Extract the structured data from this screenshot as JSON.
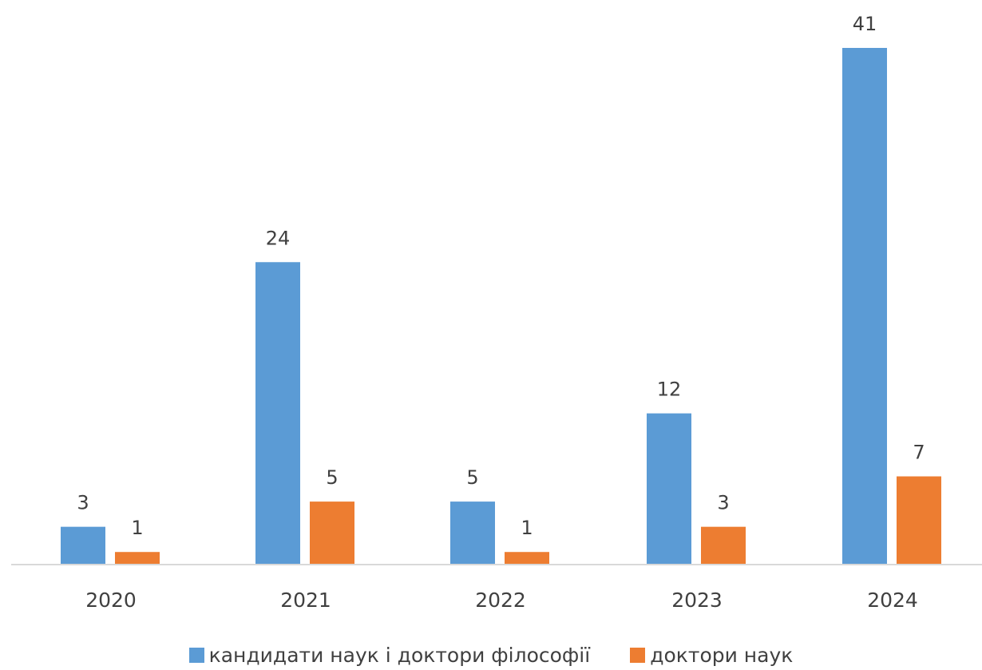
{
  "chart_data": {
    "type": "bar",
    "categories": [
      "2020",
      "2021",
      "2022",
      "2023",
      "2024"
    ],
    "series": [
      {
        "name": "кандидати наук і доктори філософії",
        "values": [
          3,
          24,
          5,
          12,
          41
        ],
        "color": "#5B9BD5"
      },
      {
        "name": "доктори наук",
        "values": [
          1,
          5,
          1,
          3,
          7
        ],
        "color": "#ED7D31"
      }
    ],
    "title": "",
    "xlabel": "",
    "ylabel": "",
    "ylim": [
      0,
      41
    ],
    "data_labels": true,
    "grid": false,
    "legend_position": "bottom"
  }
}
